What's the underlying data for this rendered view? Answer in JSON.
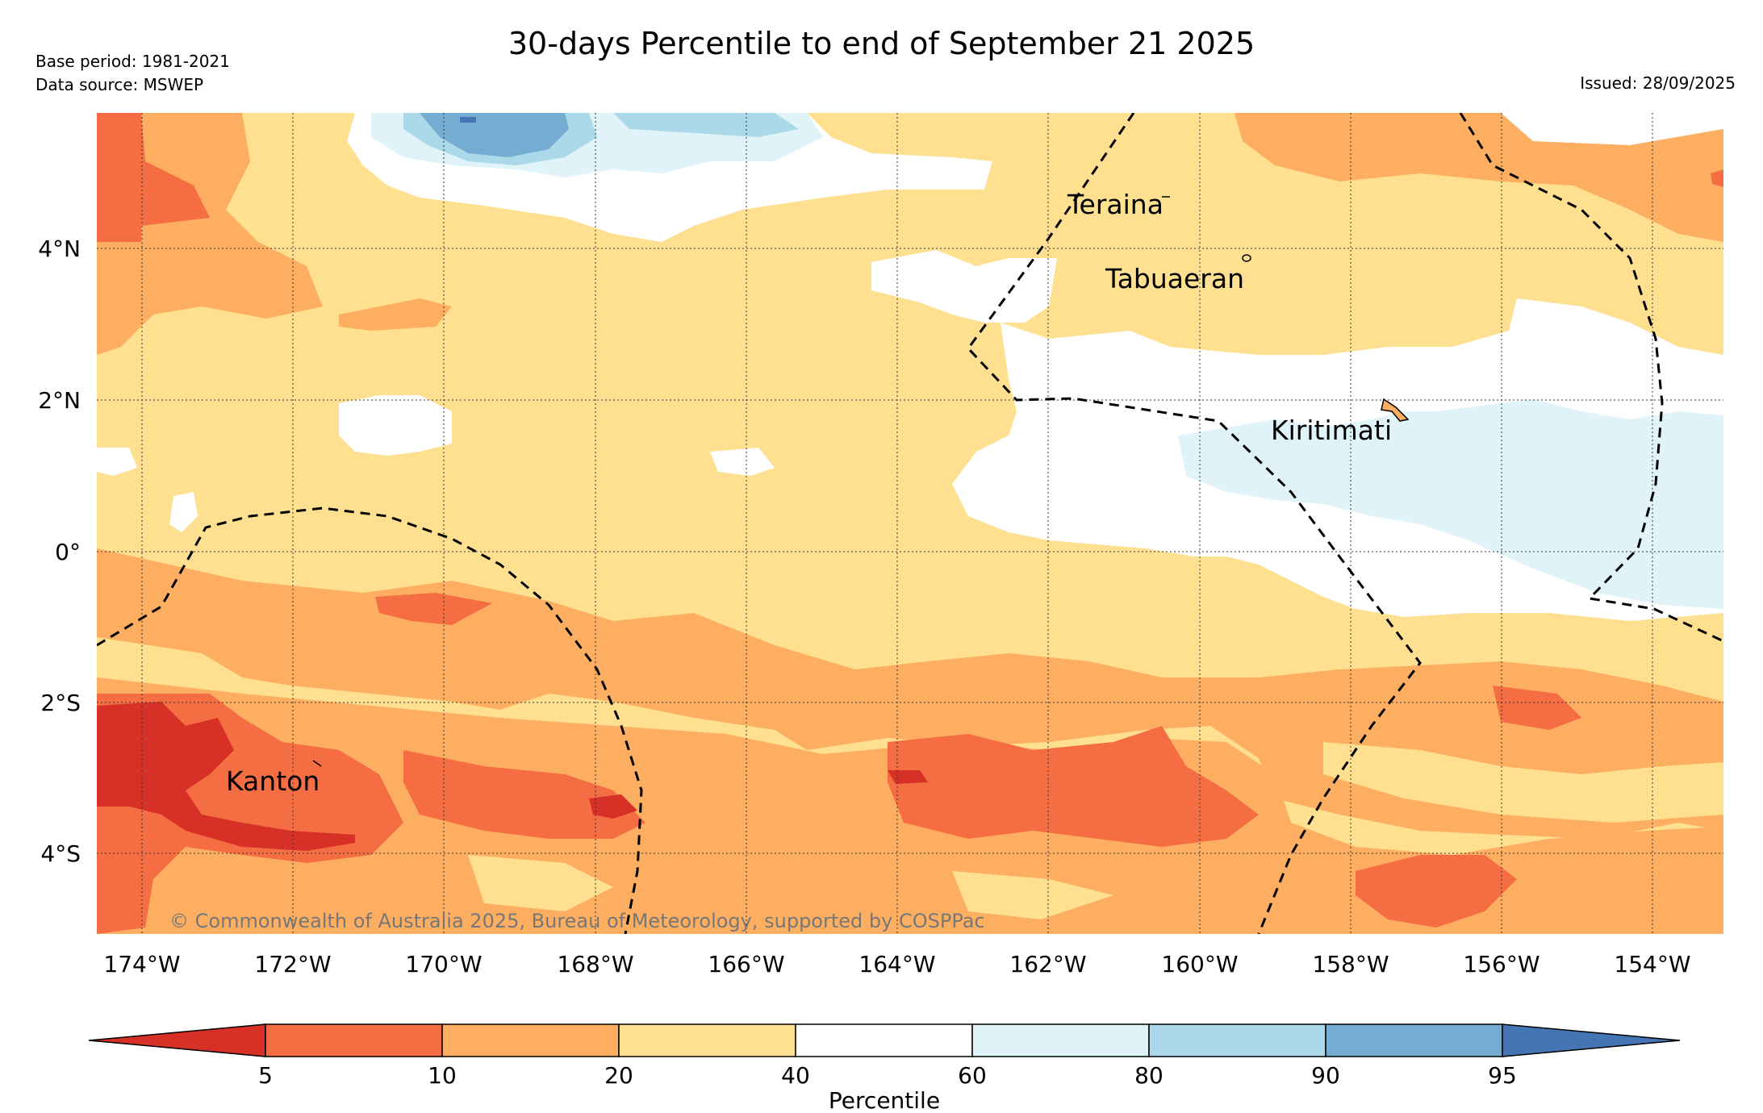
{
  "title": "30-days Percentile to end of September 21 2025",
  "base_period": "Base period: 1981-2021",
  "data_source": "Data source: MSWEP",
  "issued": "Issued: 28/09/2025",
  "copyright": "© Commonwealth of Australia 2025, Bureau of Meteorology, supported by COSPPac",
  "places": {
    "teraina": "Teraina",
    "tabuaeran": "Tabuaeran",
    "kiritimati": "Kiritimati",
    "kanton": "Kanton"
  },
  "lon_ticks": [
    "174°W",
    "172°W",
    "170°W",
    "168°W",
    "166°W",
    "164°W",
    "162°W",
    "160°W",
    "158°W",
    "156°W",
    "154°W"
  ],
  "lat_ticks": [
    "4°N",
    "2°N",
    "0°",
    "2°S",
    "4°S"
  ],
  "colorbar": {
    "label": "Percentile",
    "ticks": [
      "5",
      "10",
      "20",
      "40",
      "60",
      "80",
      "90",
      "95"
    ],
    "colors": {
      "lt5": "#d73027",
      "b5_10": "#f46d43",
      "b10_20": "#fdae61",
      "b20_40": "#fee090",
      "b40_60": "#ffffff",
      "b60_80": "#e0f3f8",
      "b80_90": "#abd9e9",
      "b90_95": "#74add1",
      "gt95": "#4575b4"
    }
  }
}
